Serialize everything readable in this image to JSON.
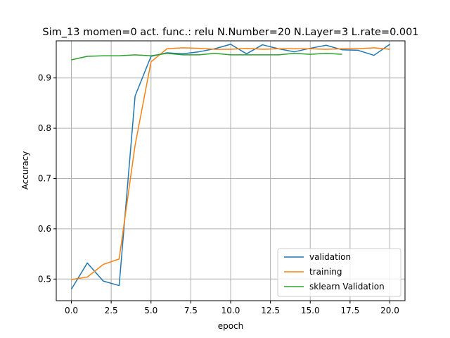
{
  "chart_data": {
    "type": "line",
    "title": "Sim_13 momen=0 act. func.: relu N.Number=20 N.Layer=3 L.rate=0.001",
    "xlabel": "epoch",
    "ylabel": "Accuracy",
    "xlim": [
      -0.95,
      20.95
    ],
    "ylim": [
      0.457,
      0.9738
    ],
    "xticks": [
      0.0,
      2.5,
      5.0,
      7.5,
      10.0,
      12.5,
      15.0,
      17.5,
      20.0
    ],
    "xtick_labels": [
      "0.0",
      "2.5",
      "5.0",
      "7.5",
      "10.0",
      "12.5",
      "15.0",
      "17.5",
      "20.0"
    ],
    "yticks": [
      0.5,
      0.6,
      0.7,
      0.8,
      0.9
    ],
    "ytick_labels": [
      "0.5",
      "0.6",
      "0.7",
      "0.8",
      "0.9"
    ],
    "grid": true,
    "legend_position": "lower-right",
    "series": [
      {
        "name": "validation",
        "color": "#1f77b4",
        "x": [
          0,
          1,
          2,
          3,
          4,
          5,
          6,
          7,
          8,
          9,
          10,
          11,
          12,
          13,
          14,
          15,
          16,
          17,
          18,
          19,
          20
        ],
        "values": [
          0.48,
          0.532,
          0.496,
          0.487,
          0.864,
          0.943,
          0.95,
          0.948,
          0.952,
          0.958,
          0.967,
          0.948,
          0.966,
          0.958,
          0.952,
          0.959,
          0.965,
          0.956,
          0.955,
          0.945,
          0.967
        ]
      },
      {
        "name": "training",
        "color": "#ff7f0e",
        "x": [
          0,
          1,
          2,
          3,
          4,
          5,
          6,
          7,
          8,
          9,
          10,
          11,
          12,
          13,
          14,
          15,
          16,
          17,
          18,
          19,
          20
        ],
        "values": [
          0.499,
          0.504,
          0.529,
          0.54,
          0.766,
          0.932,
          0.958,
          0.96,
          0.959,
          0.957,
          0.957,
          0.959,
          0.957,
          0.958,
          0.958,
          0.958,
          0.957,
          0.958,
          0.958,
          0.96,
          0.957
        ]
      },
      {
        "name": "sklearn Validation",
        "color": "#2ca02c",
        "x": [
          0,
          1,
          2,
          3,
          4,
          5,
          6,
          7,
          8,
          9,
          10,
          11,
          12,
          13,
          14,
          15,
          16,
          17
        ],
        "values": [
          0.936,
          0.943,
          0.944,
          0.944,
          0.946,
          0.944,
          0.949,
          0.946,
          0.946,
          0.949,
          0.946,
          0.946,
          0.946,
          0.946,
          0.949,
          0.947,
          0.949,
          0.947
        ]
      }
    ]
  }
}
